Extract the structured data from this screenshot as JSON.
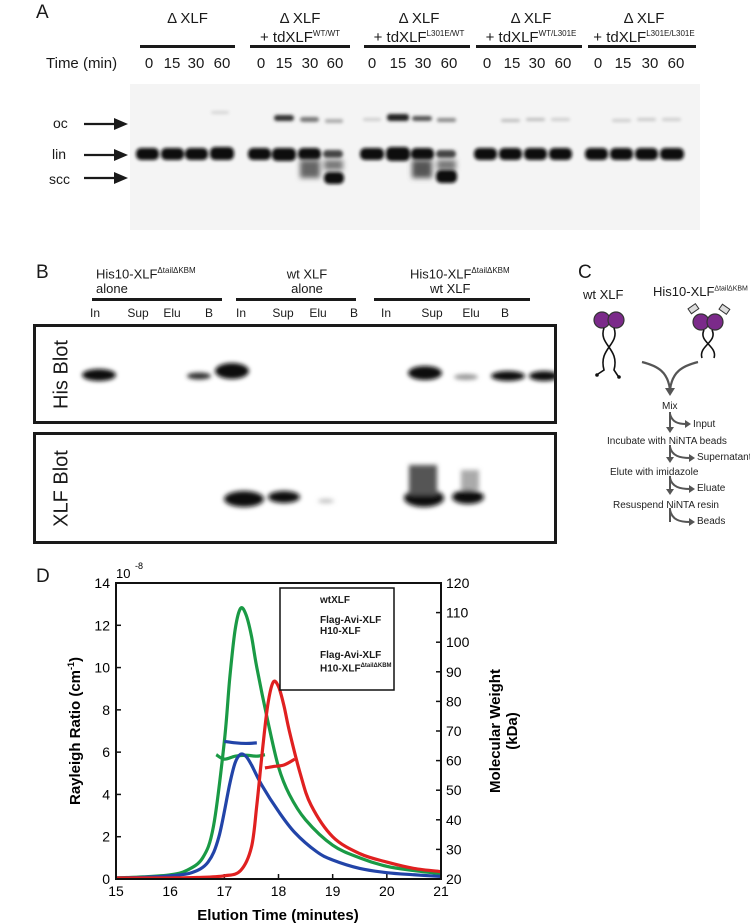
{
  "panels": {
    "a": "A",
    "b": "B",
    "c": "C",
    "d": "D"
  },
  "panel_a": {
    "time_label": "Time (min)",
    "times": [
      "0",
      "15",
      "30",
      "60"
    ],
    "groups": [
      {
        "line1": "Δ XLF",
        "line2": "",
        "sup": ""
      },
      {
        "line1": "Δ XLF",
        "line2": "+ tdXLF",
        "sup": "WT/WT"
      },
      {
        "line1": "Δ XLF",
        "line2": "+ tdXLF",
        "sup": "L301E/WT"
      },
      {
        "line1": "Δ XLF",
        "line2": "+ tdXLF",
        "sup": "WT/L301E"
      },
      {
        "line1": "Δ XLF",
        "line2": "+ tdXLF",
        "sup": "L301E/L301E"
      }
    ],
    "markers": {
      "oc": "oc",
      "lin": "lin",
      "scc": "scc"
    }
  },
  "panel_b": {
    "groups": [
      {
        "line1": "His10-XLF",
        "sup": "ΔtailΔKBM",
        "line2": "alone"
      },
      {
        "line1": "wt XLF",
        "sup": "",
        "line2": "alone"
      },
      {
        "line1": "His10-XLF",
        "sup": "ΔtailΔKBM",
        "line2": "wt XLF"
      }
    ],
    "lanes": [
      "In",
      "Sup",
      "Elu",
      "B"
    ],
    "his_blot": "His Blot",
    "xlf_blot": "XLF Blot"
  },
  "panel_c": {
    "left_label": "wt XLF",
    "right_label": "His10-XLF",
    "right_sup": "ΔtailΔKBM",
    "steps": {
      "mix": "Mix",
      "input": "Input",
      "incubate": "Incubate with NiNTA beads",
      "supernatant": "Supernatant",
      "elute": "Elute with imidazole",
      "eluate": "Eluate",
      "resuspend": "Resuspend NiNTA resin",
      "beads": "Beads"
    }
  },
  "chart_data": {
    "type": "line",
    "xlabel": "Elution Time (minutes)",
    "ylabel": "Rayleigh Ratio (cm",
    "ylabel_sup": "-1",
    "ylabel_end": ")",
    "y2label_line1": "Molecular Weight",
    "y2label_line2": "(kDa)",
    "y_exponent": "10",
    "y_exponent_sup": "-8",
    "xlim": [
      15,
      21
    ],
    "ylim": [
      0,
      14
    ],
    "y2lim": [
      20,
      120
    ],
    "x_ticks": [
      "15",
      "16",
      "17",
      "18",
      "19",
      "20",
      "21"
    ],
    "y_ticks": [
      "0",
      "2",
      "4",
      "6",
      "8",
      "10",
      "12",
      "14"
    ],
    "y2_ticks": [
      "20",
      "30",
      "40",
      "50",
      "60",
      "70",
      "80",
      "90",
      "100",
      "110",
      "120"
    ],
    "series": [
      {
        "name": "wtXLF",
        "name_line2": "",
        "sup": "",
        "color": "#1a9a45",
        "x": [
          15,
          15.5,
          16,
          16.3,
          16.6,
          16.8,
          17,
          17.1,
          17.2,
          17.3,
          17.4,
          17.5,
          17.6,
          17.8,
          18,
          18.2,
          18.5,
          19,
          19.5,
          20,
          20.5,
          21
        ],
        "y": [
          0.05,
          0.1,
          0.2,
          0.4,
          1.0,
          2.5,
          6.5,
          9.5,
          11.8,
          12.8,
          12.5,
          11.5,
          10.0,
          7.5,
          5.3,
          4.0,
          2.8,
          1.6,
          1.0,
          0.6,
          0.4,
          0.25
        ],
        "mw_x": [
          16.85,
          17.0,
          17.2,
          17.4,
          17.6,
          17.75
        ],
        "mw_y": [
          62,
          60.5,
          61.5,
          61.8,
          61.5,
          62
        ]
      },
      {
        "name": "Flag-Avi-XLF",
        "name_line2": "H10-XLF",
        "sup": "",
        "color": "#2244a8",
        "x": [
          15,
          15.5,
          16,
          16.4,
          16.7,
          16.9,
          17.1,
          17.2,
          17.3,
          17.4,
          17.5,
          17.7,
          18,
          18.3,
          18.7,
          19,
          19.5,
          20,
          20.5,
          21
        ],
        "y": [
          0.05,
          0.08,
          0.15,
          0.3,
          0.8,
          2.0,
          4.5,
          5.5,
          5.9,
          5.8,
          5.4,
          4.4,
          3.2,
          2.2,
          1.3,
          0.9,
          0.5,
          0.3,
          0.2,
          0.12
        ],
        "mw_x": [
          17.0,
          17.2,
          17.4,
          17.6
        ],
        "mw_y": [
          66.5,
          66.0,
          65.8,
          66.0
        ]
      },
      {
        "name": "Flag-Avi-XLF",
        "name_line2": "H10-XLF",
        "sup": "ΔtailΔKBM",
        "color": "#e02020",
        "x": [
          15,
          15.5,
          16,
          16.5,
          17,
          17.3,
          17.5,
          17.6,
          17.7,
          17.8,
          17.9,
          18.0,
          18.1,
          18.2,
          18.4,
          18.6,
          19,
          19.5,
          20,
          20.5,
          21
        ],
        "y": [
          0.05,
          0.05,
          0.05,
          0.07,
          0.15,
          0.4,
          1.5,
          3.5,
          6.0,
          8.2,
          9.3,
          9.1,
          8.2,
          7.0,
          5.0,
          3.5,
          2.0,
          1.2,
          0.8,
          0.5,
          0.35
        ],
        "mw_x": [
          17.75,
          17.9,
          18.1,
          18.3
        ],
        "mw_y": [
          57.5,
          58.0,
          58.5,
          60.5
        ]
      }
    ]
  }
}
